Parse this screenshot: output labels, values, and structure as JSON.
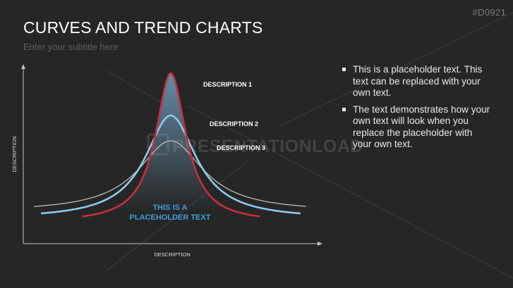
{
  "slide": {
    "code": "#D0921",
    "title": "CURVES AND TREND CHARTS",
    "subtitle": "Enter your subtitle here",
    "watermark": "PRESENTATIONLOAD"
  },
  "diagram": {
    "y_axis_label": "DESCRIPTION",
    "x_axis_label": "DESCRIPTION",
    "curve_labels": [
      "DESCRIPTION 1",
      "DESCRIPTION 2",
      "DESCRIPTION 3"
    ],
    "center_text_line1": "THIS IS A",
    "center_text_line2": "PLACEHOLDER TEXT",
    "colors": {
      "curve1": "#c6303d",
      "curve2": "#8ec9ee",
      "curve3": "#bdbdbd",
      "center_text": "#3d9fe0",
      "axis": "#c4c4c4"
    }
  },
  "bullets": [
    "This is a placeholder text. This text can be replaced with your own text.",
    "The text demonstrates how your own text will look when you replace the placeholder with your own text."
  ]
}
